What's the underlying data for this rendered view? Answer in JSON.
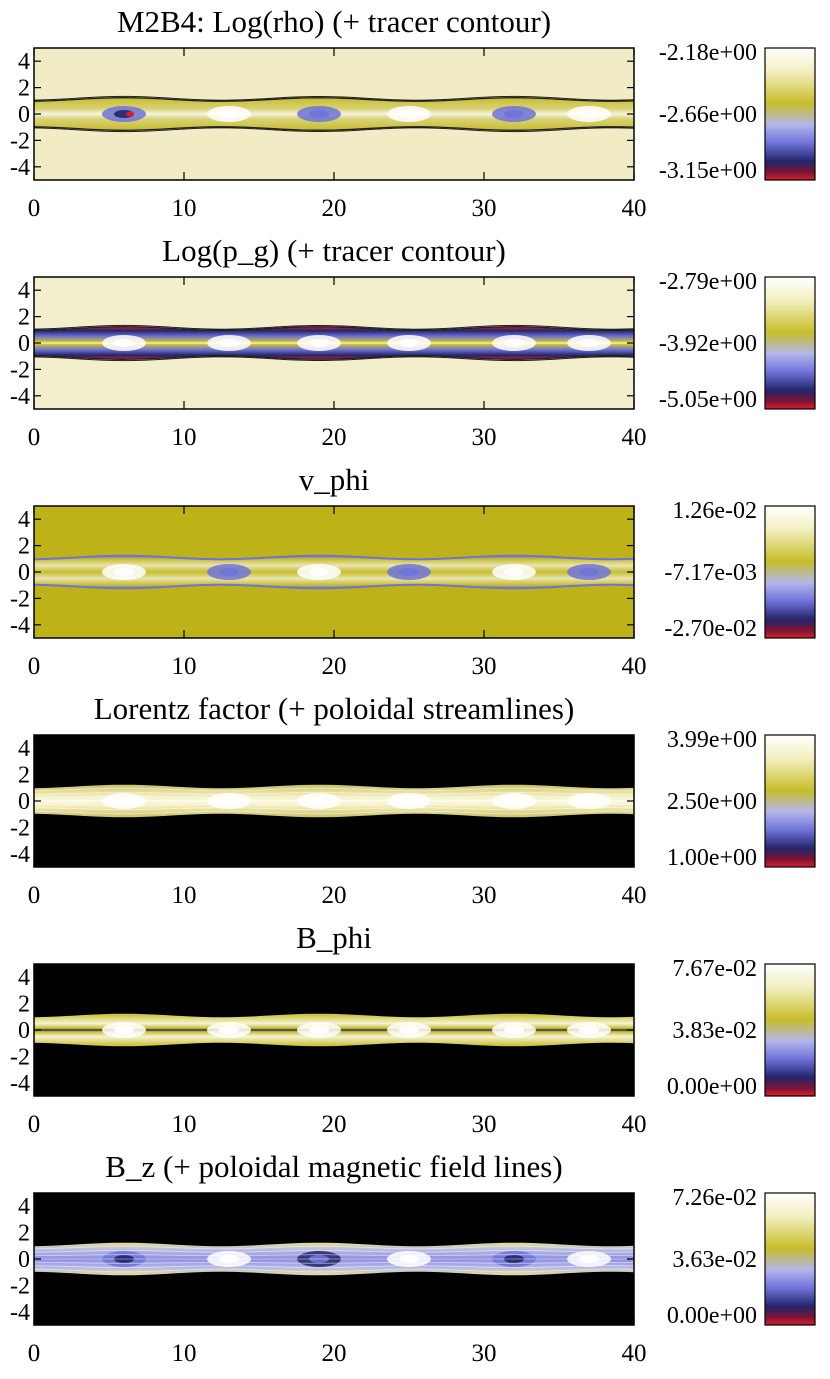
{
  "figure": {
    "palette": {
      "page_bg": "#ffffff",
      "outside_light": "#f1ecc6",
      "outside_olive": "#bdb318",
      "outside_black": "#000000",
      "olive": "#c7bd2a",
      "white": "#ffffff",
      "blue": "#6f73d8",
      "dark_blue": "#24246a",
      "red": "#d81e2a",
      "contour": "#202020"
    },
    "colorbar_palette": [
      "#d81e2a",
      "#7a1436",
      "#24246a",
      "#6f73d8",
      "#b4b6ea",
      "#c7bd2a",
      "#f3efc0",
      "#ffffff"
    ]
  },
  "chart_data": [
    {
      "type": "heatmap",
      "title": "M2B4: Log(rho) (+ tracer contour)",
      "xlim": [
        0,
        40
      ],
      "ylim": [
        -5,
        5
      ],
      "xticks": [
        "0",
        "10",
        "20",
        "30",
        "40"
      ],
      "yticks": [
        "4",
        "2",
        "0",
        "-2",
        "-4"
      ],
      "colorbar": {
        "max": "-2.18e+00",
        "mid": "-2.66e+00",
        "min": "-3.15e+00"
      },
      "scheme": "rho",
      "background": "#f1ecc6",
      "overlay": "tracer contour",
      "jet_half_width": 1.1,
      "knots_x": [
        6,
        13,
        19,
        25,
        32,
        37
      ]
    },
    {
      "type": "heatmap",
      "title": "Log(p_g) (+ tracer contour)",
      "xlim": [
        0,
        40
      ],
      "ylim": [
        -5,
        5
      ],
      "xticks": [
        "0",
        "10",
        "20",
        "30",
        "40"
      ],
      "yticks": [
        "4",
        "2",
        "0",
        "-2",
        "-4"
      ],
      "colorbar": {
        "max": "-2.79e+00",
        "mid": "-3.92e+00",
        "min": "-5.05e+00"
      },
      "scheme": "pg",
      "background": "#f3efcd",
      "overlay": "tracer contour",
      "jet_half_width": 1.1,
      "knots_x": [
        6,
        13,
        19,
        25,
        32,
        37
      ]
    },
    {
      "type": "heatmap",
      "title": "v_phi",
      "xlim": [
        0,
        40
      ],
      "ylim": [
        -5,
        5
      ],
      "xticks": [
        "0",
        "10",
        "20",
        "30",
        "40"
      ],
      "yticks": [
        "4",
        "2",
        "0",
        "-2",
        "-4"
      ],
      "colorbar": {
        "max": "1.26e-02",
        "mid": "-7.17e-03",
        "min": "-2.70e-02"
      },
      "scheme": "vphi",
      "background": "#bdb318",
      "overlay": "none",
      "jet_half_width": 1.1,
      "knots_x": [
        6,
        13,
        19,
        25,
        32,
        37
      ]
    },
    {
      "type": "heatmap",
      "title": "Lorentz factor (+ poloidal streamlines)",
      "xlim": [
        0,
        40
      ],
      "ylim": [
        -5,
        5
      ],
      "xticks": [
        "0",
        "10",
        "20",
        "30",
        "40"
      ],
      "yticks": [
        "4",
        "2",
        "0",
        "-2",
        "-4"
      ],
      "colorbar": {
        "max": "3.99e+00",
        "mid": "2.50e+00",
        "min": "1.00e+00"
      },
      "scheme": "lorentz",
      "background": "#000000",
      "overlay": "poloidal streamlines",
      "jet_half_width": 1.1,
      "knots_x": [
        6,
        13,
        19,
        25,
        32,
        37
      ]
    },
    {
      "type": "heatmap",
      "title": "B_phi",
      "xlim": [
        0,
        40
      ],
      "ylim": [
        -5,
        5
      ],
      "xticks": [
        "0",
        "10",
        "20",
        "30",
        "40"
      ],
      "yticks": [
        "4",
        "2",
        "0",
        "-2",
        "-4"
      ],
      "colorbar": {
        "max": "7.67e-02",
        "mid": "3.83e-02",
        "min": "0.00e+00"
      },
      "scheme": "bphi",
      "background": "#000000",
      "overlay": "none",
      "jet_half_width": 1.1,
      "knots_x": [
        6,
        13,
        19,
        25,
        32,
        37
      ]
    },
    {
      "type": "heatmap",
      "title": "B_z (+ poloidal magnetic field lines)",
      "xlim": [
        0,
        40
      ],
      "ylim": [
        -5,
        5
      ],
      "xticks": [
        "0",
        "10",
        "20",
        "30",
        "40"
      ],
      "yticks": [
        "4",
        "2",
        "0",
        "-2",
        "-4"
      ],
      "colorbar": {
        "max": "7.26e-02",
        "mid": "3.63e-02",
        "min": "0.00e+00"
      },
      "scheme": "bz",
      "background": "#000000",
      "overlay": "poloidal magnetic field lines",
      "jet_half_width": 1.1,
      "knots_x": [
        6,
        13,
        19,
        25,
        32,
        37
      ]
    }
  ]
}
